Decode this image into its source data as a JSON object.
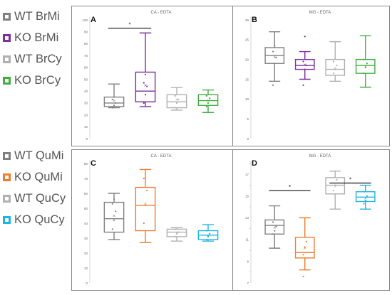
{
  "legends": [
    {
      "items": [
        {
          "label": "WT BrMi",
          "color": "#808080"
        },
        {
          "label": "KO BrMi",
          "color": "#7b2f9e"
        },
        {
          "label": "WT BrCy",
          "color": "#b0b0b0"
        },
        {
          "label": "KO BrCy",
          "color": "#3fae3f"
        }
      ]
    },
    {
      "items": [
        {
          "label": "WT QuMi",
          "color": "#808080"
        },
        {
          "label": "KO QuMi",
          "color": "#ed7d31"
        },
        {
          "label": "WT QuCy",
          "color": "#b0b0b0"
        },
        {
          "label": "KO QuCy",
          "color": "#1fb4e0"
        }
      ]
    }
  ],
  "chart_data": [
    {
      "type": "box",
      "panel_letter": "A",
      "title": "CA - EDTA",
      "ylim": [
        0,
        100
      ],
      "yticks": [
        "0",
        "10",
        "20",
        "30",
        "40",
        "50",
        "60",
        "70",
        "80",
        "90",
        "100"
      ],
      "grid": false,
      "boxes": [
        {
          "group": "WT BrMi",
          "color": "#808080",
          "min": 26,
          "q1": 27,
          "median": 30,
          "q3": 35,
          "max": 46,
          "mean": 32,
          "points": [
            26,
            28,
            30,
            33,
            35
          ]
        },
        {
          "group": "KO BrMi",
          "color": "#7b2f9e",
          "min": 27,
          "q1": 31,
          "median": 40,
          "q3": 56,
          "max": 89,
          "mean": 45,
          "points": [
            30,
            37,
            44,
            47,
            54
          ]
        },
        {
          "group": "WT BrCy",
          "color": "#b0b0b0",
          "min": 24,
          "q1": 26,
          "median": 31,
          "q3": 37,
          "max": 43,
          "mean": 33,
          "points": [
            26,
            30,
            33,
            36
          ]
        },
        {
          "group": "KO BrCy",
          "color": "#3fae3f",
          "min": 22,
          "q1": 28,
          "median": 32,
          "q3": 37,
          "max": 41,
          "mean": 32,
          "points": [
            27,
            30,
            34,
            36
          ]
        }
      ],
      "significance": [
        {
          "label": "*",
          "from": 0,
          "to": 1,
          "y": 93
        }
      ]
    },
    {
      "type": "box",
      "panel_letter": "B",
      "title": "MG - EDTA",
      "ylim": [
        0,
        30
      ],
      "yticks": [
        "0",
        "5",
        "10",
        "15",
        "20",
        "25",
        "30"
      ],
      "grid": false,
      "boxes": [
        {
          "group": "WT BrMi",
          "color": "#808080",
          "min": 14.5,
          "q1": 19,
          "median": 21,
          "q3": 23,
          "max": 27,
          "mean": 20.7,
          "points": [
            13.5,
            19,
            20.5,
            22,
            23.5
          ]
        },
        {
          "group": "KO BrMi",
          "color": "#7b2f9e",
          "min": 15,
          "q1": 17.5,
          "median": 18.5,
          "q3": 20,
          "max": 22,
          "mean": 18.7,
          "points": [
            13.5,
            17.5,
            18.5,
            19.5,
            25.8
          ]
        },
        {
          "group": "WT BrCy",
          "color": "#b0b0b0",
          "min": 14.5,
          "q1": 16,
          "median": 17.5,
          "q3": 20,
          "max": 24.5,
          "mean": 17.8,
          "points": [
            16.5,
            17.5,
            18.5,
            19.5
          ]
        },
        {
          "group": "KO BrCy",
          "color": "#3fae3f",
          "min": 13,
          "q1": 16.5,
          "median": 18.5,
          "q3": 20,
          "max": 26,
          "mean": 18.2,
          "points": [
            16.5,
            18,
            19,
            20
          ]
        }
      ],
      "significance": []
    },
    {
      "type": "box",
      "panel_letter": "C",
      "title": "CA - EDTA",
      "ylim": [
        0,
        80
      ],
      "yticks": [
        "0",
        "10",
        "20",
        "30",
        "40",
        "50",
        "60",
        "70",
        "80"
      ],
      "grid": false,
      "boxes": [
        {
          "group": "WT QuMi",
          "color": "#808080",
          "min": 29,
          "q1": 34,
          "median": 43,
          "q3": 54,
          "max": 60,
          "mean": 45,
          "points": [
            36,
            42,
            48,
            53,
            56
          ]
        },
        {
          "group": "KO QuMi",
          "color": "#ed7d31",
          "min": 27,
          "q1": 35,
          "median": 52,
          "q3": 64,
          "max": 76,
          "mean": 53,
          "points": [
            40,
            52,
            62,
            70
          ]
        },
        {
          "group": "WT QuCy",
          "color": "#b0b0b0",
          "min": 28,
          "q1": 31,
          "median": 34,
          "q3": 36,
          "max": 37,
          "mean": 33,
          "points": [
            31,
            33,
            34,
            36
          ]
        },
        {
          "group": "KO QuCy",
          "color": "#1fb4e0",
          "min": 28,
          "q1": 29,
          "median": 32,
          "q3": 35,
          "max": 39,
          "mean": 32,
          "points": [
            29,
            31,
            33,
            35
          ]
        }
      ],
      "significance": []
    },
    {
      "type": "box",
      "panel_letter": "D",
      "title": "MG - EDTA",
      "ylim": [
        7,
        18
      ],
      "yticks": [
        "7",
        "9",
        "11",
        "13",
        "15",
        "17"
      ],
      "minor_yticks": [
        "8",
        "10",
        "12",
        "14",
        "16",
        "18"
      ],
      "grid": false,
      "boxes": [
        {
          "group": "WT QuMi",
          "color": "#808080",
          "min": 10.2,
          "q1": 11.5,
          "median": 12.3,
          "q3": 12.8,
          "max": 14.1,
          "mean": 12.1,
          "points": [
            11.5,
            11.8,
            12.2,
            12.6
          ]
        },
        {
          "group": "KO QuMi",
          "color": "#ed7d31",
          "min": 8.2,
          "q1": 9.3,
          "median": 9.8,
          "q3": 11.2,
          "max": 13,
          "mean": 10.2,
          "points": [
            9.6,
            10.3,
            10.8,
            7.6
          ]
        },
        {
          "group": "WT QuCy",
          "color": "#b0b0b0",
          "min": 13.8,
          "q1": 15.2,
          "median": 16,
          "q3": 16.7,
          "max": 17.3,
          "mean": 15.9,
          "points": [
            15.5,
            16,
            16.5
          ]
        },
        {
          "group": "KO QuCy",
          "color": "#1fb4e0",
          "min": 13.8,
          "q1": 14.5,
          "median": 14.9,
          "q3": 15.4,
          "max": 16,
          "mean": 14.8,
          "points": [
            14.3,
            14.6,
            15,
            15.4
          ]
        }
      ],
      "significance": [
        {
          "label": "*",
          "from": 0,
          "to": 1,
          "y": 15.5
        },
        {
          "label": "*",
          "from": 2,
          "to": 3,
          "y": 16.2
        }
      ]
    }
  ]
}
